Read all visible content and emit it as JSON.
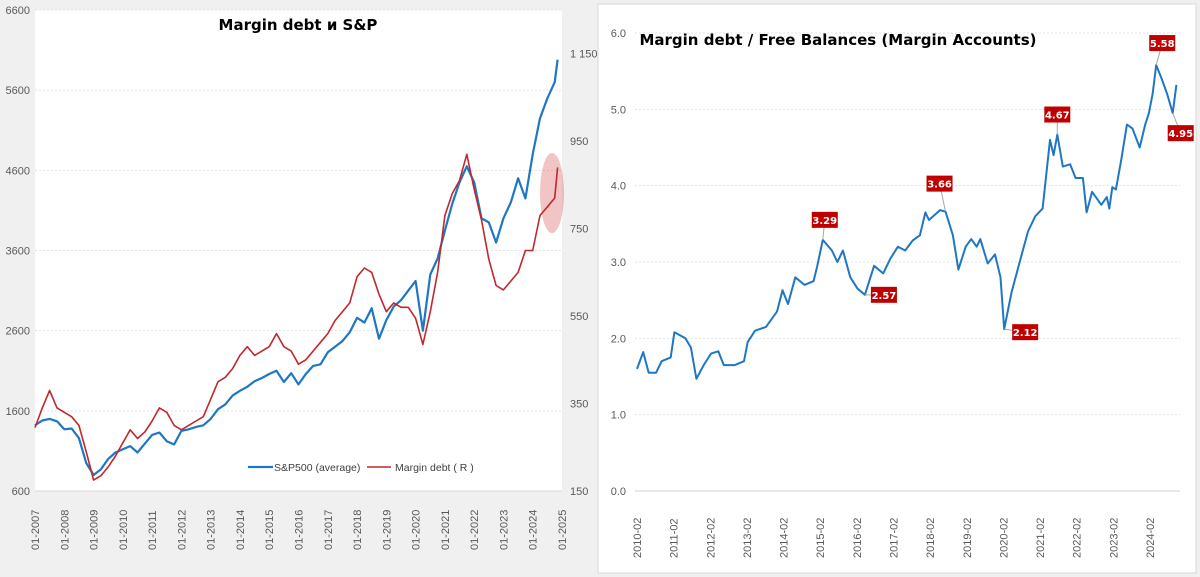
{
  "chart_data": [
    {
      "type": "line",
      "title": "Margin debt и S&P",
      "x_tick_labels": [
        "01-2007",
        "01-2008",
        "01-2009",
        "01-2010",
        "01-2011",
        "01-2012",
        "01-2013",
        "01-2014",
        "01-2015",
        "01-2016",
        "01-2017",
        "01-2018",
        "01-2019",
        "01-2020",
        "01-2021",
        "01-2022",
        "01-2023",
        "01-2024",
        "01-2025"
      ],
      "xlim": [
        2007,
        2025
      ],
      "ylim_left": [
        600,
        6600
      ],
      "yticks_left": [
        "600",
        "1600",
        "2600",
        "3600",
        "4600",
        "5600",
        "6600"
      ],
      "ylim_right": [
        150,
        1250
      ],
      "yticks_right": [
        "150",
        "350",
        "550",
        "750",
        "950",
        "1 150"
      ],
      "grid": true,
      "legend": "bottom-center",
      "series": [
        {
          "name": "S&P500 (average)",
          "axis": "left",
          "color": "#1f77c4",
          "x": [
            2007,
            2007.25,
            2007.5,
            2007.75,
            2008,
            2008.25,
            2008.5,
            2008.75,
            2009,
            2009.25,
            2009.5,
            2009.75,
            2010,
            2010.25,
            2010.5,
            2010.75,
            2011,
            2011.25,
            2011.5,
            2011.75,
            2012,
            2012.25,
            2012.5,
            2012.75,
            2013,
            2013.25,
            2013.5,
            2013.75,
            2014,
            2014.25,
            2014.5,
            2014.75,
            2015,
            2015.25,
            2015.5,
            2015.75,
            2016,
            2016.25,
            2016.5,
            2016.75,
            2017,
            2017.25,
            2017.5,
            2017.75,
            2018,
            2018.25,
            2018.5,
            2018.75,
            2019,
            2019.25,
            2019.5,
            2019.75,
            2020,
            2020.25,
            2020.5,
            2020.75,
            2021,
            2021.25,
            2021.5,
            2021.75,
            2022,
            2022.25,
            2022.5,
            2022.75,
            2023,
            2023.25,
            2023.5,
            2023.75,
            2024,
            2024.25,
            2024.5,
            2024.75,
            2024.85
          ],
          "values": [
            1420,
            1480,
            1500,
            1470,
            1370,
            1380,
            1260,
            950,
            800,
            870,
            1000,
            1080,
            1120,
            1160,
            1080,
            1190,
            1300,
            1330,
            1220,
            1180,
            1350,
            1370,
            1400,
            1420,
            1500,
            1620,
            1680,
            1790,
            1850,
            1900,
            1970,
            2010,
            2060,
            2100,
            1960,
            2070,
            1930,
            2060,
            2160,
            2180,
            2330,
            2400,
            2470,
            2580,
            2760,
            2700,
            2880,
            2500,
            2730,
            2900,
            2980,
            3100,
            3220,
            2600,
            3300,
            3500,
            3850,
            4180,
            4450,
            4650,
            4450,
            4000,
            3950,
            3700,
            4000,
            4200,
            4500,
            4250,
            4800,
            5250,
            5500,
            5700,
            5980
          ]
        },
        {
          "name": "Margin debt ( R )",
          "axis": "right",
          "color": "#c0282d",
          "x": [
            2007,
            2007.25,
            2007.5,
            2007.75,
            2008,
            2008.25,
            2008.5,
            2008.75,
            2009,
            2009.25,
            2009.5,
            2009.75,
            2010,
            2010.25,
            2010.5,
            2010.75,
            2011,
            2011.25,
            2011.5,
            2011.75,
            2012,
            2012.25,
            2012.5,
            2012.75,
            2013,
            2013.25,
            2013.5,
            2013.75,
            2014,
            2014.25,
            2014.5,
            2014.75,
            2015,
            2015.25,
            2015.5,
            2015.75,
            2016,
            2016.25,
            2016.5,
            2016.75,
            2017,
            2017.25,
            2017.5,
            2017.75,
            2018,
            2018.25,
            2018.5,
            2018.75,
            2019,
            2019.25,
            2019.5,
            2019.75,
            2020,
            2020.25,
            2020.5,
            2020.75,
            2021,
            2021.25,
            2021.5,
            2021.75,
            2022,
            2022.25,
            2022.5,
            2022.75,
            2023,
            2023.25,
            2023.5,
            2023.75,
            2024,
            2024.25,
            2024.5,
            2024.75,
            2024.85
          ],
          "values": [
            295,
            340,
            380,
            340,
            330,
            320,
            300,
            240,
            175,
            185,
            205,
            230,
            260,
            290,
            270,
            285,
            310,
            340,
            330,
            300,
            290,
            300,
            310,
            320,
            360,
            400,
            410,
            430,
            460,
            480,
            460,
            470,
            480,
            510,
            480,
            470,
            440,
            450,
            470,
            490,
            510,
            540,
            560,
            580,
            640,
            660,
            650,
            600,
            560,
            580,
            570,
            570,
            545,
            485,
            560,
            650,
            780,
            830,
            860,
            920,
            840,
            770,
            680,
            620,
            610,
            630,
            650,
            700,
            700,
            780,
            800,
            820,
            890
          ]
        }
      ],
      "annotations": [
        "highlight ellipse around latest Margin debt value"
      ]
    },
    {
      "type": "line",
      "title": "Margin debt / Free Balances (Margin Accounts)",
      "x_tick_labels": [
        "2010-02",
        "2011-02",
        "2012-02",
        "2013-02",
        "2014-02",
        "2015-02",
        "2016-02",
        "2017-02",
        "2018-02",
        "2019-02",
        "2020-02",
        "2021-02",
        "2022-02",
        "2023-02",
        "2024-02"
      ],
      "xlim": [
        2010.08,
        2024.9
      ],
      "ylim": [
        0,
        6
      ],
      "yticks": [
        "0.0",
        "1.0",
        "2.0",
        "3.0",
        "4.0",
        "5.0",
        "6.0"
      ],
      "grid": true,
      "series": [
        {
          "name": "Margin debt / Free Balances",
          "color": "#1f77c4",
          "x": [
            2010.08,
            2010.25,
            2010.4,
            2010.6,
            2010.75,
            2011.0,
            2011.1,
            2011.4,
            2011.55,
            2011.7,
            2011.9,
            2012.1,
            2012.3,
            2012.45,
            2012.75,
            2013.0,
            2013.1,
            2013.3,
            2013.6,
            2013.9,
            2014.05,
            2014.2,
            2014.4,
            2014.65,
            2014.9,
            2015.0,
            2015.15,
            2015.4,
            2015.55,
            2015.7,
            2015.9,
            2016.1,
            2016.3,
            2016.55,
            2016.8,
            2017.0,
            2017.2,
            2017.4,
            2017.6,
            2017.8,
            2017.95,
            2018.05,
            2018.35,
            2018.5,
            2018.7,
            2018.85,
            2019.05,
            2019.2,
            2019.35,
            2019.45,
            2019.65,
            2019.85,
            2020.0,
            2020.1,
            2020.3,
            2020.55,
            2020.75,
            2020.95,
            2021.15,
            2021.35,
            2021.45,
            2021.55,
            2021.7,
            2021.9,
            2022.05,
            2022.25,
            2022.35,
            2022.5,
            2022.75,
            2022.9,
            2022.97,
            2023.05,
            2023.15,
            2023.3,
            2023.45,
            2023.6,
            2023.8,
            2023.95,
            2024.05,
            2024.15,
            2024.25,
            2024.4,
            2024.55,
            2024.7,
            2024.8
          ],
          "values": [
            1.6,
            1.82,
            1.55,
            1.55,
            1.7,
            1.75,
            2.08,
            2.0,
            1.88,
            1.47,
            1.65,
            1.8,
            1.83,
            1.65,
            1.65,
            1.7,
            1.95,
            2.1,
            2.15,
            2.35,
            2.63,
            2.45,
            2.8,
            2.7,
            2.75,
            2.95,
            3.29,
            3.15,
            3.0,
            3.15,
            2.8,
            2.65,
            2.57,
            2.95,
            2.85,
            3.05,
            3.2,
            3.15,
            3.28,
            3.35,
            3.65,
            3.55,
            3.68,
            3.66,
            3.35,
            2.9,
            3.2,
            3.3,
            3.2,
            3.3,
            2.98,
            3.1,
            2.8,
            2.12,
            2.6,
            3.05,
            3.4,
            3.6,
            3.7,
            4.6,
            4.4,
            4.67,
            4.25,
            4.28,
            4.1,
            4.1,
            3.65,
            3.92,
            3.75,
            3.85,
            3.7,
            3.98,
            3.95,
            4.35,
            4.8,
            4.75,
            4.5,
            4.8,
            4.95,
            5.2,
            5.58,
            5.4,
            5.2,
            4.95,
            5.32
          ]
        }
      ],
      "data_labels": [
        {
          "x": 2015.15,
          "value": 3.29,
          "text": "3.29"
        },
        {
          "x": 2016.3,
          "value": 2.57,
          "text": "2.57"
        },
        {
          "x": 2018.5,
          "value": 3.66,
          "text": "3.66"
        },
        {
          "x": 2020.1,
          "value": 2.12,
          "text": "2.12"
        },
        {
          "x": 2021.55,
          "value": 4.67,
          "text": "4.67"
        },
        {
          "x": 2024.25,
          "value": 5.58,
          "text": "5.58"
        },
        {
          "x": 2024.7,
          "value": 4.95,
          "text": "4.95"
        }
      ],
      "label_color": "#c00000"
    }
  ]
}
